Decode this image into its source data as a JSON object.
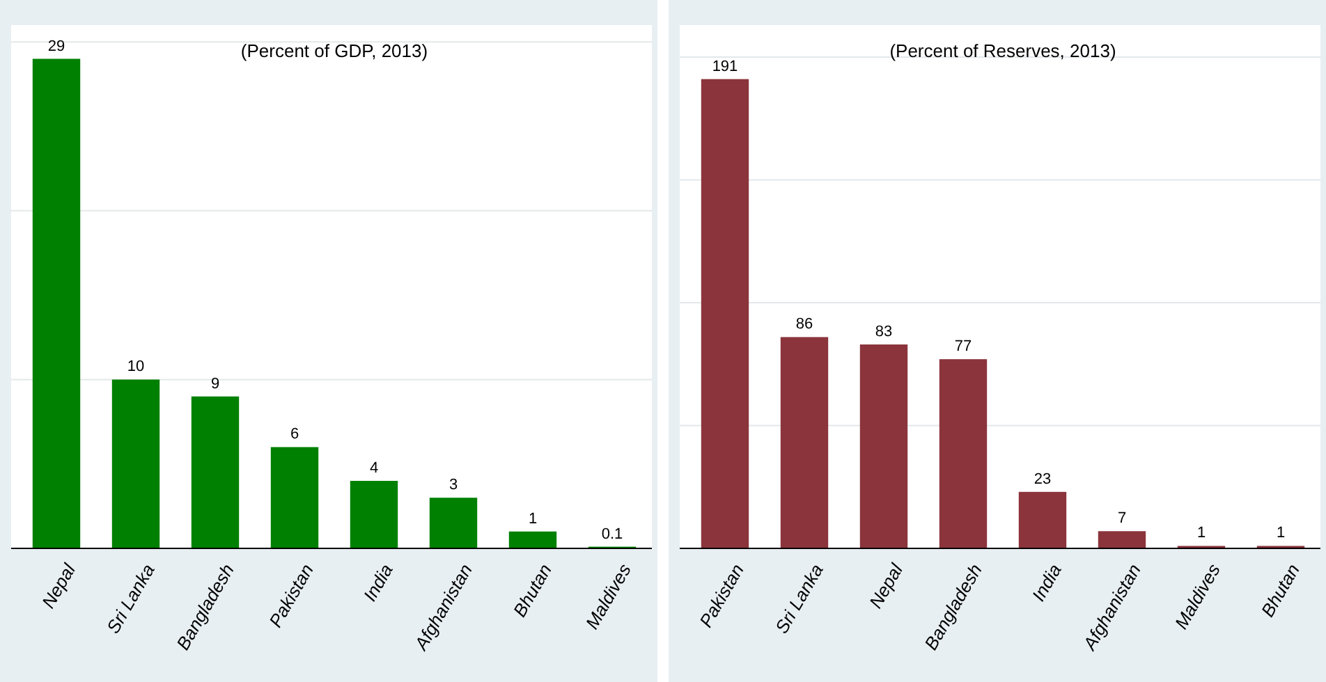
{
  "chart_data": [
    {
      "type": "bar",
      "title": "(Percent of GDP, 2013)",
      "categories": [
        "Nepal",
        "Sri Lanka",
        "Bangladesh",
        "Pakistan",
        "India",
        "Afghanistan",
        "Bhutan",
        "Maldives"
      ],
      "values": [
        29,
        10,
        9,
        6,
        4,
        3,
        1,
        0.1
      ],
      "color": "#008000",
      "ylim": [
        0,
        31
      ],
      "yticks": [
        {
          "value": 10,
          "label": null
        },
        {
          "value": 20,
          "label": null
        },
        {
          "value": 30,
          "label": null
        }
      ],
      "grid": "y",
      "tick_labels": "x",
      "data_labels": true
    },
    {
      "type": "bar",
      "title": "(Percent of Reserves, 2013)",
      "categories": [
        "Pakistan",
        "Sri Lanka",
        "Nepal",
        "Bangladesh",
        "India",
        "Afghanistan",
        "Maldives",
        "Bhutan"
      ],
      "values": [
        191,
        86,
        83,
        77,
        23,
        7,
        1,
        1
      ],
      "color": "#8b343c",
      "ylim": [
        0,
        213
      ],
      "yticks": [
        {
          "value": 50,
          "label": null
        },
        {
          "value": 100,
          "label": null
        },
        {
          "value": 150,
          "label": null
        },
        {
          "value": 200,
          "label": null
        }
      ],
      "grid": "y",
      "tick_labels": "x",
      "data_labels": true
    }
  ]
}
